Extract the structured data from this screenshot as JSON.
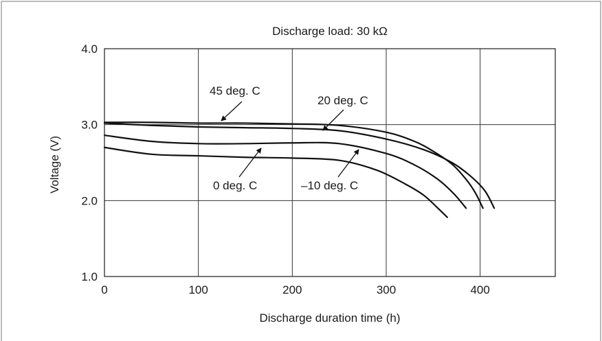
{
  "chart_data": {
    "type": "line",
    "title": "Discharge load: 30 kΩ",
    "xlabel": "Discharge duration time (h)",
    "ylabel": "Voltage (V)",
    "xlim": [
      0,
      480
    ],
    "ylim": [
      1.0,
      4.0
    ],
    "grid": true,
    "x_ticks": [
      0,
      100,
      200,
      300,
      400
    ],
    "x_tick_labels": [
      "0",
      "100",
      "200",
      "300",
      "400"
    ],
    "y_ticks": [
      1.0,
      2.0,
      3.0,
      4.0
    ],
    "y_tick_labels": [
      "1.0",
      "2.0",
      "3.0",
      "4.0"
    ],
    "series": [
      {
        "name": "45 deg. C",
        "x": [
          0,
          50,
          100,
          150,
          200,
          250,
          300,
          330,
          350,
          370,
          385,
          395,
          403
        ],
        "y": [
          3.03,
          3.03,
          3.02,
          3.02,
          3.01,
          2.99,
          2.9,
          2.78,
          2.65,
          2.48,
          2.28,
          2.1,
          1.9
        ]
      },
      {
        "name": "20 deg. C",
        "x": [
          0,
          50,
          100,
          150,
          200,
          250,
          300,
          340,
          370,
          390,
          405,
          415
        ],
        "y": [
          3.02,
          2.99,
          2.97,
          2.96,
          2.95,
          2.92,
          2.81,
          2.67,
          2.5,
          2.32,
          2.13,
          1.9
        ]
      },
      {
        "name": "0 deg. C",
        "x": [
          0,
          50,
          100,
          150,
          200,
          250,
          300,
          330,
          355,
          372,
          385
        ],
        "y": [
          2.86,
          2.78,
          2.75,
          2.75,
          2.76,
          2.75,
          2.62,
          2.47,
          2.28,
          2.09,
          1.9
        ]
      },
      {
        "name": "–10 deg. C",
        "x": [
          0,
          50,
          100,
          150,
          200,
          250,
          290,
          320,
          340,
          355,
          365
        ],
        "y": [
          2.7,
          2.61,
          2.59,
          2.57,
          2.56,
          2.53,
          2.4,
          2.22,
          2.07,
          1.9,
          1.78
        ]
      }
    ],
    "annotations": [
      {
        "text": "45 deg. C",
        "series": "45 deg. C"
      },
      {
        "text": "20 deg. C",
        "series": "20 deg. C"
      },
      {
        "text": "0 deg. C",
        "series": "0 deg. C"
      },
      {
        "text": "–10 deg. C",
        "series": "–10 deg. C"
      }
    ]
  }
}
